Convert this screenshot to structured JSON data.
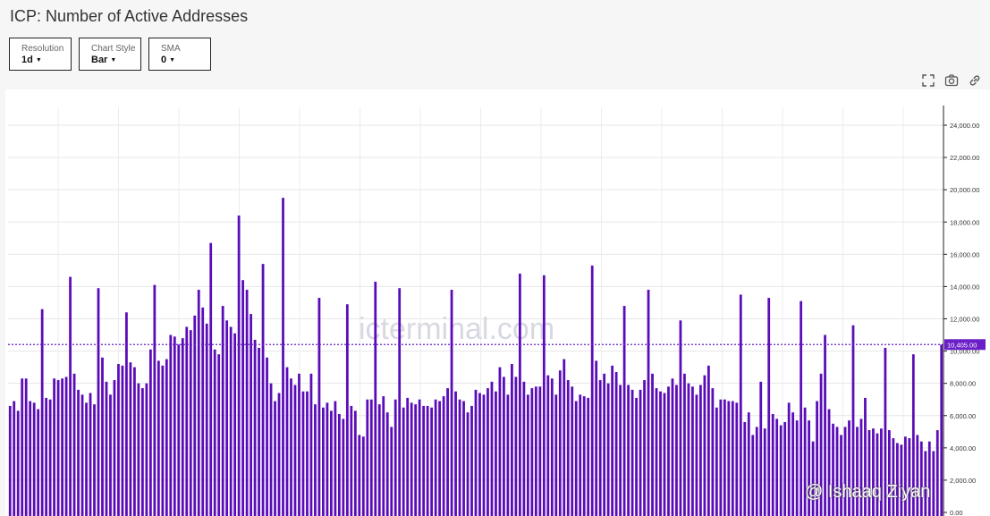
{
  "title": "ICP: Number of Active Addresses",
  "controls": [
    {
      "label": "Resolution",
      "value": "1d"
    },
    {
      "label": "Chart Style",
      "value": "Bar"
    },
    {
      "label": "SMA",
      "value": "0"
    }
  ],
  "toolbar": [
    "expand-icon",
    "camera-icon",
    "link-icon"
  ],
  "watermark": "icterminal.com",
  "credit": "@ Ishaaq Ziyan",
  "chart_data": {
    "type": "bar",
    "ylim": [
      0,
      25000
    ],
    "yticks": [
      "0.00",
      "2,000.00",
      "4,000.00",
      "6,000.00",
      "8,000.00",
      "10,000.00",
      "12,000.00",
      "14,000.00",
      "16,000.00",
      "18,000.00",
      "20,000.00",
      "22,000.00",
      "24,000.00"
    ],
    "last_value_label": "10,405.00",
    "last_value": 10405,
    "bar_color": "#5a0cb8",
    "marker_color": "#6a1fc8",
    "grid": true,
    "values": [
      6600,
      6900,
      6300,
      8300,
      8300,
      6900,
      6800,
      6400,
      12600,
      7100,
      7000,
      8300,
      8200,
      8300,
      8400,
      14600,
      8600,
      7600,
      7300,
      6800,
      7400,
      6700,
      13900,
      9600,
      8100,
      7300,
      8200,
      9200,
      9100,
      12400,
      9300,
      9000,
      8000,
      7700,
      8000,
      10100,
      14100,
      9400,
      9100,
      9500,
      11000,
      10900,
      10400,
      10800,
      11500,
      11300,
      12200,
      13800,
      12700,
      11700,
      16700,
      10100,
      9800,
      12800,
      11900,
      11500,
      11100,
      18400,
      14400,
      13800,
      12300,
      10700,
      10200,
      15400,
      9600,
      8000,
      6900,
      7400,
      19500,
      9000,
      8300,
      7900,
      8600,
      7500,
      7500,
      8600,
      6700,
      13300,
      6500,
      6800,
      6300,
      6900,
      6100,
      5800,
      12900,
      6600,
      6300,
      4800,
      4700,
      7000,
      7000,
      14300,
      6700,
      7200,
      6200,
      5300,
      7000,
      13900,
      6500,
      7100,
      6800,
      6700,
      7000,
      6600,
      6600,
      6500,
      7000,
      6900,
      7200,
      7700,
      13800,
      7500,
      7000,
      6900,
      6200,
      6600,
      7600,
      7400,
      7300,
      7700,
      8100,
      7500,
      9000,
      8400,
      7300,
      9200,
      8400,
      14800,
      8100,
      7300,
      7700,
      7800,
      7800,
      14700,
      8500,
      8300,
      7300,
      8800,
      9500,
      8200,
      7800,
      6900,
      7300,
      7200,
      7100,
      15300,
      9400,
      8200,
      8600,
      8000,
      9100,
      8700,
      7900,
      12800,
      7900,
      7600,
      7100,
      7600,
      8200,
      13800,
      8600,
      7700,
      7500,
      7400,
      7800,
      8300,
      7900,
      11900,
      8600,
      8000,
      7800,
      7300,
      7900,
      8500,
      9100,
      7700,
      6500,
      7000,
      7000,
      6900,
      6900,
      6800,
      13500,
      5600,
      6200,
      4800,
      5300,
      8100,
      5200,
      13300,
      6100,
      5800,
      5400,
      5600,
      6800,
      6200,
      5700,
      13100,
      6500,
      5700,
      4400,
      6900,
      8600,
      11000,
      6400,
      5500,
      5300,
      4800,
      5300,
      5700,
      11600,
      5300,
      5800,
      7100,
      5100,
      5200,
      4900,
      5200,
      10200,
      5100,
      4600,
      4300,
      4200,
      4700,
      4600,
      9800,
      4800,
      4400,
      3800,
      4400,
      3800,
      5100,
      10405
    ]
  }
}
